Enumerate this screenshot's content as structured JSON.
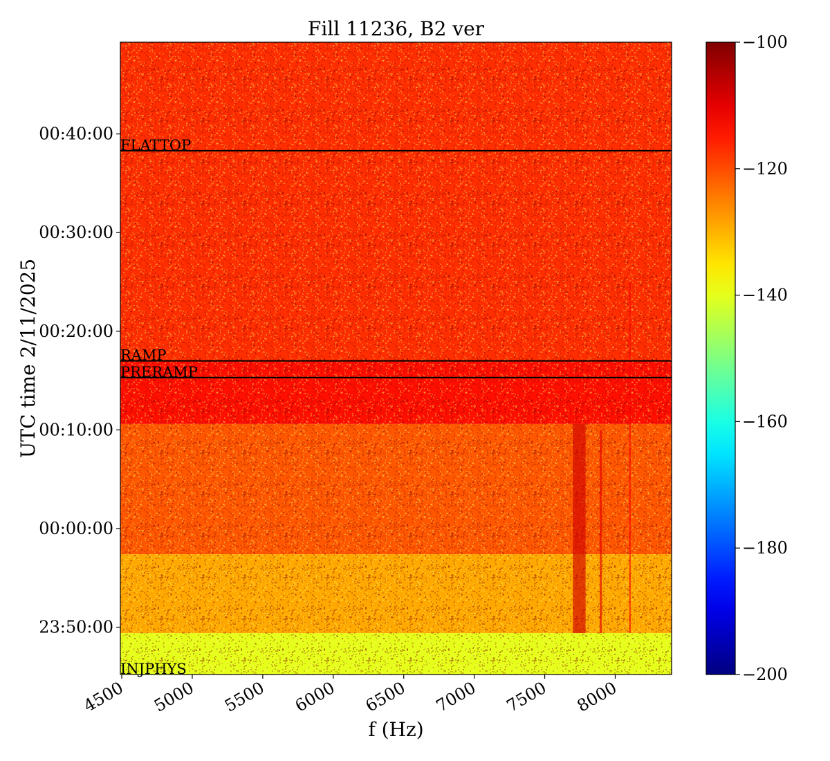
{
  "chart_data": {
    "type": "heatmap",
    "title": "Fill 11236, B2 ver",
    "xlabel": "f (Hz)",
    "ylabel": "UTC time 2/11/2025",
    "xlim": [
      4490,
      8400
    ],
    "x_ticks": [
      {
        "value": 4500,
        "label": "4500"
      },
      {
        "value": 5000,
        "label": "5000"
      },
      {
        "value": 5500,
        "label": "5500"
      },
      {
        "value": 6000,
        "label": "6000"
      },
      {
        "value": 6500,
        "label": "6500"
      },
      {
        "value": 7000,
        "label": "7000"
      },
      {
        "value": 7500,
        "label": "7500"
      },
      {
        "value": 8000,
        "label": "8000"
      }
    ],
    "ylim_minutes_from_midnight": [
      -14.8,
      49.3
    ],
    "y_ticks": [
      {
        "minutes": -10,
        "label": "23:50:00"
      },
      {
        "minutes": 0,
        "label": "00:00:00"
      },
      {
        "minutes": 10,
        "label": "00:10:00"
      },
      {
        "minutes": 20,
        "label": "00:20:00"
      },
      {
        "minutes": 30,
        "label": "00:30:00"
      },
      {
        "minutes": 40,
        "label": "00:40:00"
      }
    ],
    "colorbar": {
      "colormap": "jet",
      "range": [
        -200,
        -100
      ],
      "ticks": [
        {
          "value": -100,
          "label": "−100"
        },
        {
          "value": -120,
          "label": "−120"
        },
        {
          "value": -140,
          "label": "−140"
        },
        {
          "value": -160,
          "label": "−160"
        },
        {
          "value": -180,
          "label": "−180"
        },
        {
          "value": -200,
          "label": "−200"
        }
      ]
    },
    "time_bands": [
      {
        "from_min": -14.8,
        "to_min": -10.6,
        "level_db": -140
      },
      {
        "from_min": -10.6,
        "to_min": -2.6,
        "level_db": -129
      },
      {
        "from_min": -2.6,
        "to_min": 10.6,
        "level_db": -121
      },
      {
        "from_min": 10.6,
        "to_min": 17.0,
        "level_db": -114
      },
      {
        "from_min": 17.0,
        "to_min": 49.3,
        "level_db": -117
      }
    ],
    "line_features": [
      {
        "from_hz": 7700,
        "to_hz": 7790,
        "from_min": -10.6,
        "to_min": 10.6,
        "level_db": -108
      },
      {
        "from_hz": 7890,
        "to_hz": 7905,
        "from_min": -10.6,
        "to_min": 10.0,
        "level_db": -110
      },
      {
        "from_hz": 8100,
        "to_hz": 8110,
        "from_min": -10.6,
        "to_min": 25.0,
        "level_db": -112
      }
    ],
    "markers": [
      {
        "label": "FLATTOP",
        "minutes": 38.3
      },
      {
        "label": "RAMP",
        "minutes": 17.0
      },
      {
        "label": "PRERAMP",
        "minutes": 15.3
      },
      {
        "label": "INJPHYS",
        "minutes": -14.8
      }
    ]
  }
}
